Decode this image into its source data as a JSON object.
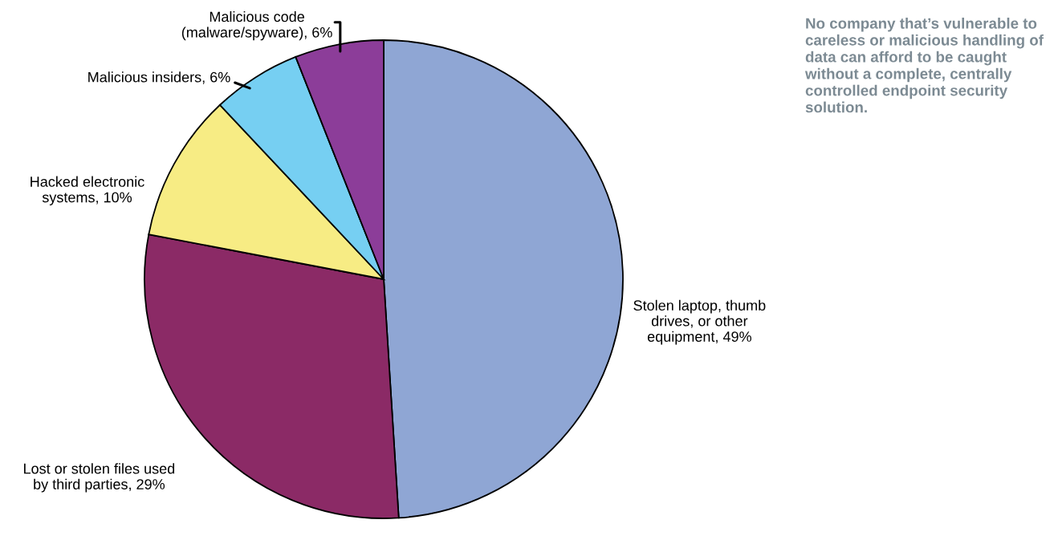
{
  "chart_data": {
    "type": "pie",
    "categories": [
      "Stolen laptop, thumb\ndrives, or other\nequipment",
      "Lost or stolen files used\nby third parties",
      "Hacked electronic\nsystems",
      "Malicious insiders",
      "Malicious code\n(malware/spyware)"
    ],
    "values": [
      49,
      29,
      10,
      6,
      6
    ],
    "value_labels": [
      "49%",
      "29%",
      "10%",
      "6%",
      "6%"
    ],
    "colors": [
      "#8fa6d4",
      "#8b2a66",
      "#f7ec84",
      "#76cff2",
      "#8c3d99"
    ],
    "annotations": [
      "No company that’s vulnerable to careless or malicious handling of data can afford to be caught without a complete, centrally controlled endpoint security solution."
    ]
  }
}
